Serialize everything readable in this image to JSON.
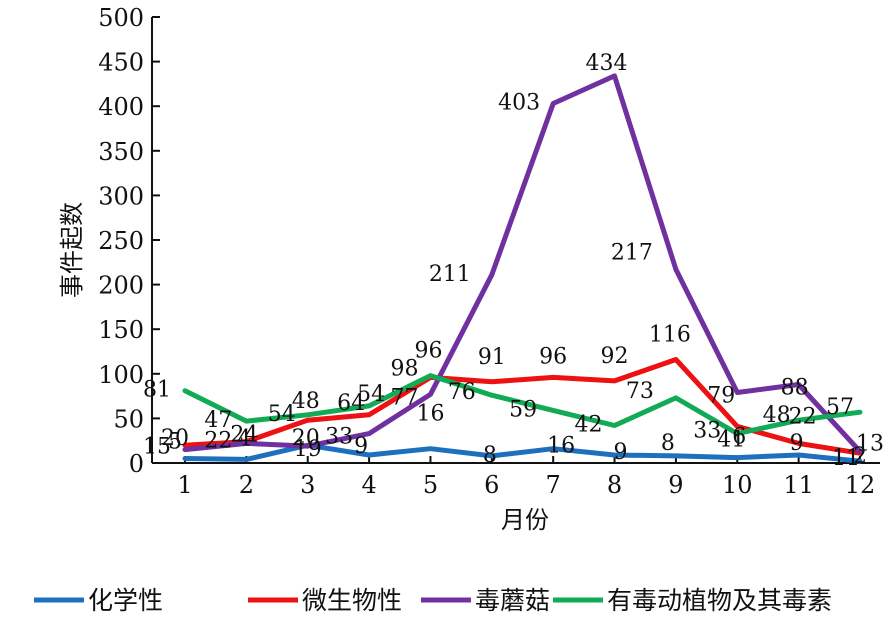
{
  "chart_data": {
    "type": "line",
    "xlabel": "月份",
    "ylabel": "事件起数",
    "categories": [
      "1",
      "2",
      "3",
      "4",
      "5",
      "6",
      "7",
      "8",
      "9",
      "10",
      "11",
      "12"
    ],
    "ylim": [
      0,
      500
    ],
    "yticks": [
      0,
      50,
      100,
      150,
      200,
      250,
      300,
      350,
      400,
      450,
      500
    ],
    "grid": false,
    "legend_position": "bottom",
    "series": [
      {
        "name": "化学性",
        "color": "#1f6fbf",
        "values": [
          5,
          4,
          20,
          9,
          16,
          8,
          16,
          9,
          8,
          6,
          9,
          2
        ]
      },
      {
        "name": "微生物性",
        "color": "#ee1111",
        "values": [
          20,
          24,
          48,
          54,
          96,
          91,
          96,
          92,
          116,
          41,
          22,
          11
        ]
      },
      {
        "name": "毒蘑菇",
        "color": "#7030a0",
        "values": [
          15,
          22,
          19,
          33,
          77,
          211,
          403,
          434,
          217,
          79,
          88,
          13
        ]
      },
      {
        "name": "有毒动植物及其毒素",
        "color": "#11aa55",
        "values": [
          81,
          47,
          54,
          64,
          98,
          76,
          59,
          42,
          73,
          33,
          48,
          57
        ]
      }
    ]
  }
}
